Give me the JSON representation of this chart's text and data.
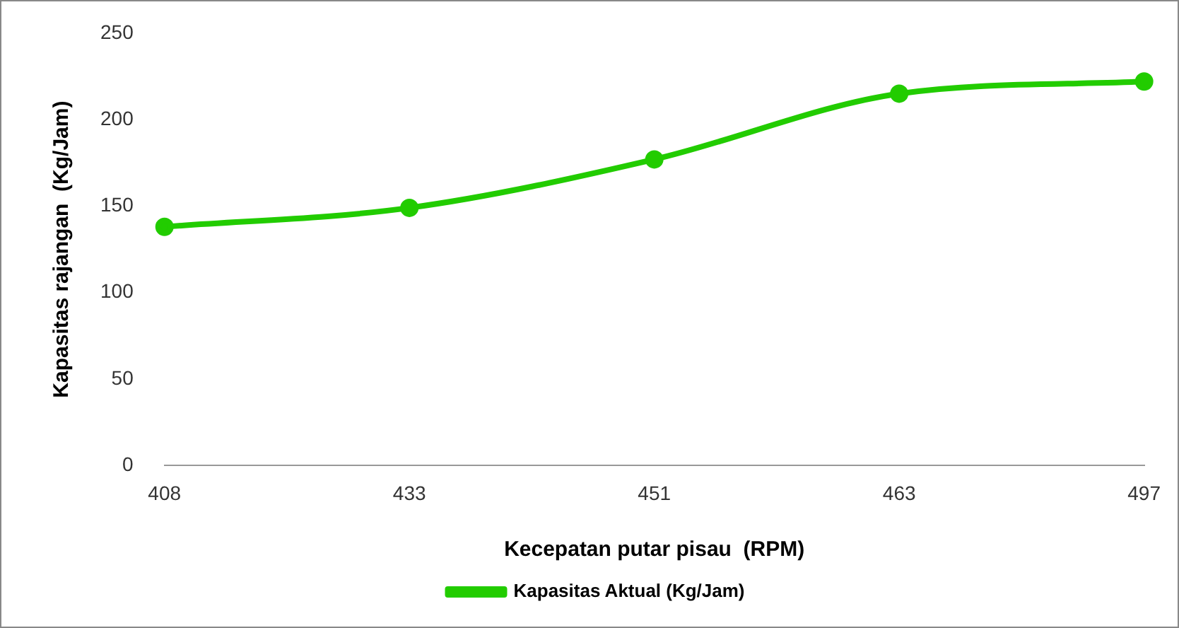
{
  "chart_data": {
    "type": "line",
    "xlabel": "Kecepatan putar pisau  (RPM)",
    "ylabel": "Kapasitas rajangan  (Kg/Jam)",
    "categories": [
      "408",
      "433",
      "451",
      "463",
      "497"
    ],
    "series": [
      {
        "name": "Kapasitas Aktual (Kg/Jam)",
        "color": "#22cc00",
        "values": [
          138,
          149,
          177,
          215,
          222
        ]
      }
    ],
    "ylim": [
      0,
      250
    ],
    "yticks": [
      0,
      50,
      100,
      150,
      200,
      250
    ],
    "grid": false,
    "legend": "bottom",
    "marker": "circle",
    "line_style": "solid"
  }
}
